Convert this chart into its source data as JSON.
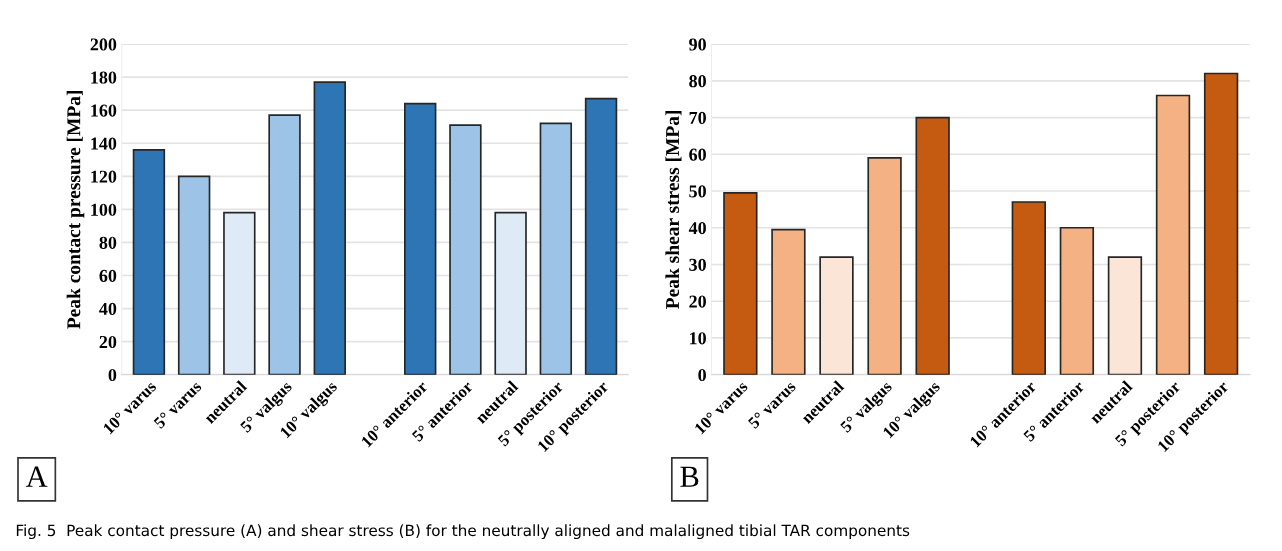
{
  "chart_data": [
    {
      "type": "bar",
      "ylabel": "Peak contact pressure [MPa]",
      "categories": [
        "10° varus",
        "5° varus",
        "neutral",
        "5° valgus",
        "10° valgus",
        null,
        "10° anterior",
        "5° anterior",
        "neutral",
        "5° posterior",
        "10° posterior"
      ],
      "values": [
        136,
        120,
        98,
        157,
        177,
        null,
        164,
        151,
        98,
        152,
        167
      ],
      "colors": [
        "#2e75b6",
        "#9dc3e6",
        "#deebf7",
        "#9dc3e6",
        "#2e75b6",
        null,
        "#2e75b6",
        "#9dc3e6",
        "#deebf7",
        "#9dc3e6",
        "#2e75b6"
      ],
      "ylim": [
        0,
        200
      ],
      "yticks": [
        0,
        20,
        40,
        60,
        80,
        100,
        120,
        140,
        160,
        180,
        200
      ],
      "grid": "y",
      "annotations": [
        "A",
        "Fig. 5  Peak contact pressure (A) and shear stress (B) for the neutrally aligned and malaligned tibial TAR components"
      ]
    },
    {
      "type": "bar",
      "ylabel": "Peak shear stress [MPa]",
      "categories": [
        "10° varus",
        "5° varus",
        "neutral",
        "5° valgus",
        "10° valgus",
        null,
        "10° anterior",
        "5° anterior",
        "neutral",
        "5° posterior",
        "10° posterior"
      ],
      "values": [
        49.5,
        39.5,
        32,
        59,
        70,
        null,
        47,
        40,
        32,
        76,
        82
      ],
      "colors": [
        "#c55a11",
        "#f4b183",
        "#fbe5d6",
        "#f4b183",
        "#c55a11",
        null,
        "#c55a11",
        "#f4b183",
        "#fbe5d6",
        "#f4b183",
        "#c55a11"
      ],
      "ylim": [
        0,
        90
      ],
      "yticks": [
        0,
        10,
        20,
        30,
        40,
        50,
        60,
        70,
        80,
        90
      ],
      "grid": "y",
      "annotations": [
        "B"
      ]
    }
  ]
}
